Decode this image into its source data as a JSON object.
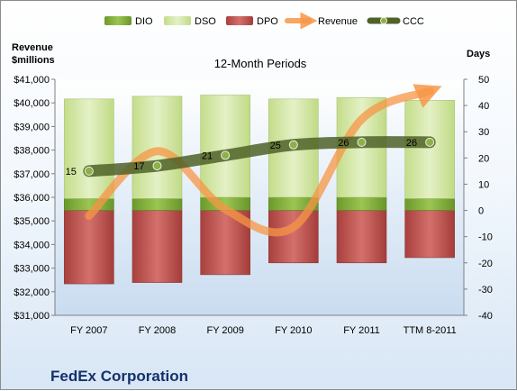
{
  "chart_data": {
    "type": "bar",
    "title": "12-Month Periods",
    "company": "FedEx Corporation",
    "left_axis_label_line1": "Revenue",
    "left_axis_label_line2": "$millions",
    "right_axis_label": "Days",
    "categories": [
      "FY 2007",
      "FY 2008",
      "FY 2009",
      "FY 2010",
      "FY 2011",
      "TTM 8-2011"
    ],
    "left_axis": {
      "min": 31000,
      "max": 41000,
      "step": 1000,
      "tick_labels": [
        "$31,000",
        "$32,000",
        "$33,000",
        "$34,000",
        "$35,000",
        "$36,000",
        "$37,000",
        "$38,000",
        "$39,000",
        "$40,000",
        "$41,000"
      ]
    },
    "right_axis": {
      "min": -40,
      "max": 50,
      "step": 10,
      "tick_labels": [
        "-40",
        "-30",
        "-20",
        "-10",
        "0",
        "10",
        "20",
        "30",
        "40",
        "50"
      ]
    },
    "stacked_bars_days": {
      "DIO": [
        4.5,
        4.5,
        5,
        5,
        5,
        4.5
      ],
      "DSO": [
        38,
        39,
        39,
        37.5,
        38,
        37.5
      ],
      "DPO": [
        -28,
        -27.5,
        -24.5,
        -20,
        -20,
        -18
      ]
    },
    "series": [
      {
        "name": "DIO",
        "color": "#7aa332",
        "kind": "stacked-bar"
      },
      {
        "name": "DSO",
        "color": "#d6e9ab",
        "kind": "stacked-bar"
      },
      {
        "name": "DPO",
        "color": "#c0504d",
        "kind": "stacked-bar"
      },
      {
        "name": "Revenue",
        "color": "#f79646",
        "kind": "line",
        "axis": "left",
        "values": [
          35214,
          37953,
          35497,
          34734,
          39304,
          40500
        ]
      },
      {
        "name": "CCC",
        "color": "#4f6228",
        "kind": "line",
        "axis": "right",
        "values": [
          15,
          17,
          21,
          25,
          26,
          26
        ]
      }
    ],
    "ccc_labels": [
      "15",
      "17",
      "21",
      "25",
      "26",
      "26"
    ],
    "legend_position": "top",
    "grid": false
  }
}
